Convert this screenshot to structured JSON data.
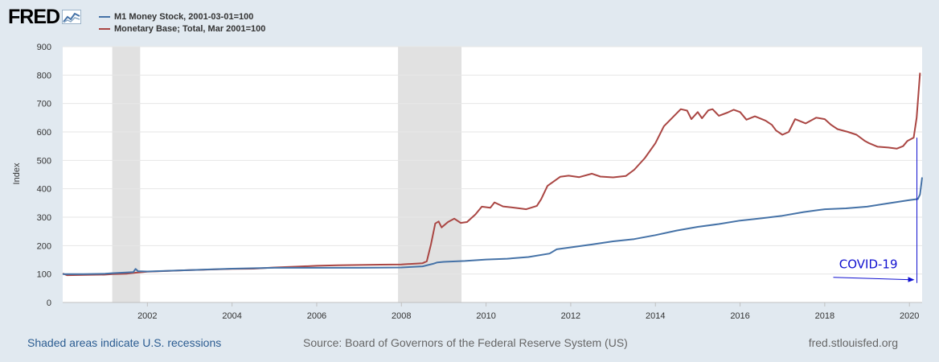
{
  "brand": {
    "name": "FRED"
  },
  "legend": [
    {
      "label": "M1 Money Stock, 2001-03-01=100",
      "color": "#4572a7"
    },
    {
      "label": "Monetary Base; Total, Mar 2001=100",
      "color": "#aa4643"
    }
  ],
  "footer": {
    "recession_note": "Shaded areas indicate U.S. recessions",
    "source": "Source: Board of Governors of the Federal Reserve System (US)",
    "site": "fred.stlouisfed.org"
  },
  "chart_data": {
    "type": "line",
    "ylabel": "Index",
    "xlim": [
      2000.0,
      2020.3
    ],
    "ylim": [
      0,
      900
    ],
    "yticks": [
      0,
      100,
      200,
      300,
      400,
      500,
      600,
      700,
      800,
      900
    ],
    "xticks": [
      2002,
      2004,
      2006,
      2008,
      2010,
      2012,
      2014,
      2016,
      2018,
      2020
    ],
    "grid": true,
    "legend_position": "top-left",
    "recessions": [
      [
        2001.17,
        2001.83
      ],
      [
        2007.92,
        2009.42
      ]
    ],
    "recession_color": "#e1e1e1",
    "series": [
      {
        "name": "M1 Money Stock, 2001-03-01=100",
        "color": "#4572a7",
        "points": [
          [
            2000.0,
            100
          ],
          [
            2000.5,
            100
          ],
          [
            2001.0,
            101
          ],
          [
            2001.17,
            103
          ],
          [
            2001.67,
            107
          ],
          [
            2001.72,
            118
          ],
          [
            2001.78,
            110
          ],
          [
            2002.0,
            109
          ],
          [
            2003.0,
            114
          ],
          [
            2004.0,
            119
          ],
          [
            2005.0,
            122
          ],
          [
            2006.0,
            122
          ],
          [
            2007.0,
            122
          ],
          [
            2008.0,
            123
          ],
          [
            2008.5,
            127
          ],
          [
            2008.75,
            136
          ],
          [
            2008.85,
            141
          ],
          [
            2009.0,
            143
          ],
          [
            2009.5,
            146
          ],
          [
            2010.0,
            151
          ],
          [
            2010.5,
            154
          ],
          [
            2011.0,
            160
          ],
          [
            2011.5,
            172
          ],
          [
            2011.67,
            187
          ],
          [
            2012.0,
            194
          ],
          [
            2012.5,
            204
          ],
          [
            2013.0,
            215
          ],
          [
            2013.5,
            223
          ],
          [
            2014.0,
            237
          ],
          [
            2014.5,
            253
          ],
          [
            2015.0,
            266
          ],
          [
            2015.5,
            276
          ],
          [
            2016.0,
            288
          ],
          [
            2016.5,
            296
          ],
          [
            2017.0,
            305
          ],
          [
            2017.5,
            318
          ],
          [
            2018.0,
            328
          ],
          [
            2018.5,
            331
          ],
          [
            2019.0,
            337
          ],
          [
            2019.5,
            349
          ],
          [
            2020.0,
            360
          ],
          [
            2020.2,
            364
          ],
          [
            2020.25,
            380
          ],
          [
            2020.3,
            440
          ]
        ]
      },
      {
        "name": "Monetary Base; Total, Mar 2001=100",
        "color": "#aa4643",
        "points": [
          [
            2000.0,
            102
          ],
          [
            2000.1,
            96
          ],
          [
            2000.5,
            97
          ],
          [
            2001.0,
            98
          ],
          [
            2001.17,
            100
          ],
          [
            2001.5,
            101
          ],
          [
            2001.75,
            105
          ],
          [
            2002.0,
            108
          ],
          [
            2002.5,
            111
          ],
          [
            2003.0,
            114
          ],
          [
            2003.5,
            116
          ],
          [
            2004.0,
            118
          ],
          [
            2004.5,
            119
          ],
          [
            2005.0,
            123
          ],
          [
            2005.5,
            126
          ],
          [
            2006.0,
            129
          ],
          [
            2006.5,
            131
          ],
          [
            2007.0,
            132
          ],
          [
            2007.5,
            133
          ],
          [
            2008.0,
            134
          ],
          [
            2008.5,
            138
          ],
          [
            2008.6,
            145
          ],
          [
            2008.7,
            205
          ],
          [
            2008.8,
            278
          ],
          [
            2008.88,
            285
          ],
          [
            2008.95,
            264
          ],
          [
            2009.1,
            283
          ],
          [
            2009.25,
            295
          ],
          [
            2009.4,
            280
          ],
          [
            2009.55,
            283
          ],
          [
            2009.75,
            310
          ],
          [
            2009.9,
            337
          ],
          [
            2010.1,
            333
          ],
          [
            2010.2,
            352
          ],
          [
            2010.4,
            338
          ],
          [
            2010.75,
            332
          ],
          [
            2010.95,
            328
          ],
          [
            2011.2,
            340
          ],
          [
            2011.3,
            363
          ],
          [
            2011.45,
            410
          ],
          [
            2011.75,
            442
          ],
          [
            2011.95,
            446
          ],
          [
            2012.2,
            441
          ],
          [
            2012.5,
            453
          ],
          [
            2012.7,
            443
          ],
          [
            2013.0,
            440
          ],
          [
            2013.3,
            445
          ],
          [
            2013.5,
            467
          ],
          [
            2013.75,
            508
          ],
          [
            2014.0,
            560
          ],
          [
            2014.2,
            620
          ],
          [
            2014.4,
            650
          ],
          [
            2014.6,
            680
          ],
          [
            2014.75,
            675
          ],
          [
            2014.85,
            645
          ],
          [
            2015.0,
            670
          ],
          [
            2015.1,
            648
          ],
          [
            2015.25,
            676
          ],
          [
            2015.35,
            680
          ],
          [
            2015.5,
            657
          ],
          [
            2015.7,
            668
          ],
          [
            2015.85,
            678
          ],
          [
            2016.0,
            670
          ],
          [
            2016.15,
            643
          ],
          [
            2016.35,
            655
          ],
          [
            2016.6,
            640
          ],
          [
            2016.75,
            625
          ],
          [
            2016.85,
            605
          ],
          [
            2017.0,
            590
          ],
          [
            2017.15,
            600
          ],
          [
            2017.3,
            645
          ],
          [
            2017.55,
            630
          ],
          [
            2017.8,
            650
          ],
          [
            2018.0,
            645
          ],
          [
            2018.15,
            625
          ],
          [
            2018.3,
            610
          ],
          [
            2018.55,
            600
          ],
          [
            2018.75,
            590
          ],
          [
            2018.95,
            568
          ],
          [
            2019.05,
            560
          ],
          [
            2019.25,
            548
          ],
          [
            2019.5,
            545
          ],
          [
            2019.7,
            541
          ],
          [
            2019.85,
            550
          ],
          [
            2019.95,
            568
          ],
          [
            2020.1,
            580
          ],
          [
            2020.17,
            650
          ],
          [
            2020.25,
            808
          ]
        ]
      }
    ],
    "annotations": [
      {
        "text": "COVID-19",
        "x": 2020.12,
        "y": 80,
        "color": "#1010d0"
      }
    ]
  }
}
